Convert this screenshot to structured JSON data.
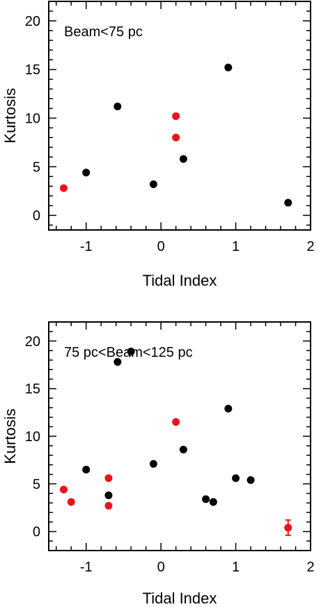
{
  "chart_data": [
    {
      "type": "scatter",
      "annotation": "Beam<75 pc",
      "xlabel": "Tidal Index",
      "ylabel": "Kurtosis",
      "xlim": [
        -1.5,
        2.0
      ],
      "ylim": [
        -1.5,
        22
      ],
      "xticks": [
        -1,
        0,
        1,
        2
      ],
      "yticks": [
        0,
        5,
        10,
        15,
        20
      ],
      "grid": false,
      "series": [
        {
          "color": "#000000",
          "points": [
            {
              "x": -1.0,
              "y": 4.4
            },
            {
              "x": -0.58,
              "y": 11.2
            },
            {
              "x": -0.1,
              "y": 3.2
            },
            {
              "x": 0.3,
              "y": 5.8
            },
            {
              "x": 0.9,
              "y": 15.2
            },
            {
              "x": 1.7,
              "y": 1.3
            }
          ]
        },
        {
          "color": "#e8141b",
          "points": [
            {
              "x": -1.3,
              "y": 2.8
            },
            {
              "x": 0.2,
              "y": 10.2
            },
            {
              "x": 0.2,
              "y": 8.0
            }
          ]
        }
      ]
    },
    {
      "type": "scatter",
      "annotation": "75 pc<Beam<125 pc",
      "xlabel": "Tidal Index",
      "ylabel": "Kurtosis",
      "xlim": [
        -1.5,
        2.0
      ],
      "ylim": [
        -2,
        22
      ],
      "xticks": [
        -1,
        0,
        1,
        2
      ],
      "yticks": [
        0,
        5,
        10,
        15,
        20
      ],
      "grid": false,
      "series": [
        {
          "color": "#000000",
          "points": [
            {
              "x": -1.0,
              "y": 6.5
            },
            {
              "x": -0.7,
              "y": 3.8
            },
            {
              "x": -0.58,
              "y": 17.8
            },
            {
              "x": -0.4,
              "y": 18.9
            },
            {
              "x": -0.1,
              "y": 7.1
            },
            {
              "x": 0.3,
              "y": 8.6
            },
            {
              "x": 0.6,
              "y": 3.4
            },
            {
              "x": 0.7,
              "y": 3.1
            },
            {
              "x": 0.9,
              "y": 12.9
            },
            {
              "x": 1.0,
              "y": 5.6
            },
            {
              "x": 1.2,
              "y": 5.4
            }
          ]
        },
        {
          "color": "#e8141b",
          "points": [
            {
              "x": -1.3,
              "y": 4.4
            },
            {
              "x": -1.2,
              "y": 3.1
            },
            {
              "x": -0.7,
              "y": 5.6
            },
            {
              "x": -0.7,
              "y": 2.7
            },
            {
              "x": 0.2,
              "y": 11.5
            },
            {
              "x": 1.7,
              "y": 0.4,
              "yerr": 0.8
            }
          ]
        }
      ]
    }
  ]
}
